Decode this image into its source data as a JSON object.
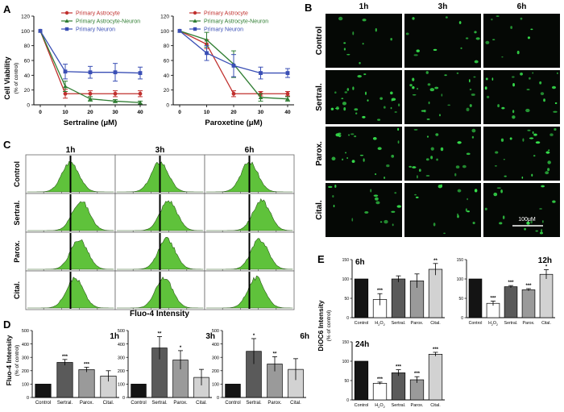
{
  "panel_letters": {
    "A": "A",
    "B": "B",
    "C": "C",
    "D": "D",
    "E": "E"
  },
  "colors": {
    "astrocyte": "#c0302e",
    "coculture": "#2f7d32",
    "neuron": "#3a4fb5",
    "micrograph_bg": "#050805",
    "cell_green": "#36e04c",
    "histogram_fill": "#5fc23b",
    "bar_control": "#141414",
    "bar_sertral": "#5a5a5a",
    "bar_parox": "#9a9a9a",
    "bar_cital": "#d2d2d2",
    "bar_h2o2": "#ffffff"
  },
  "panel_a": {
    "ylabel": "Cell Viability",
    "ylabel_sub": "(% of control)",
    "legend": [
      "Primary Astrocyte",
      "Primary Astrocyte-Neuron",
      "Primary Neuron"
    ]
  },
  "panel_b": {
    "time_labels": [
      "1h",
      "3h",
      "6h"
    ],
    "row_labels": [
      "Control",
      "Sertral.",
      "Parox.",
      "Cital."
    ],
    "scale_bar": "100μM"
  },
  "panel_c": {
    "time_labels": [
      "1h",
      "3h",
      "6h"
    ],
    "row_labels": [
      "Control",
      "Sertral.",
      "Parox.",
      "Cital."
    ],
    "xlabel": "Fluo-4 Intensity"
  },
  "panel_d": {
    "ylabel": "Fluo-4 Intensity",
    "ylabel_sub": "(% of control)"
  },
  "panel_e": {
    "ylabel": "DiOC6 Intensity",
    "ylabel_sub": "(% of control)"
  },
  "chart_data": [
    {
      "id": "A1",
      "type": "line",
      "xlabel": "Sertraline (μM)",
      "x": [
        0,
        10,
        20,
        30,
        40
      ],
      "xticks": [
        "0",
        "10",
        "20",
        "30",
        "40"
      ],
      "ylim": [
        0,
        120
      ],
      "yticks": [
        0,
        20,
        40,
        60,
        80,
        100,
        120
      ],
      "series": [
        {
          "name": "Primary Astrocyte",
          "values": [
            100,
            15,
            15,
            15,
            15
          ],
          "err": [
            0,
            6,
            4,
            4,
            4
          ]
        },
        {
          "name": "Primary Astrocyte-Neuron",
          "values": [
            100,
            25,
            8,
            5,
            3
          ],
          "err": [
            0,
            7,
            3,
            2,
            2
          ]
        },
        {
          "name": "Primary Neuron",
          "values": [
            100,
            45,
            44,
            44,
            43
          ],
          "err": [
            0,
            10,
            8,
            12,
            8
          ]
        }
      ]
    },
    {
      "id": "A2",
      "type": "line",
      "xlabel": "Paroxetine (μM)",
      "x": [
        0,
        10,
        20,
        30,
        40
      ],
      "xticks": [
        "0",
        "10",
        "20",
        "30",
        "40"
      ],
      "ylim": [
        0,
        120
      ],
      "yticks": [
        0,
        20,
        40,
        60,
        80,
        100,
        120
      ],
      "series": [
        {
          "name": "Primary Astrocyte",
          "values": [
            100,
            82,
            15,
            15,
            15
          ],
          "err": [
            0,
            6,
            4,
            3,
            3
          ]
        },
        {
          "name": "Primary Astrocyte-Neuron",
          "values": [
            100,
            88,
            55,
            10,
            8
          ],
          "err": [
            0,
            10,
            18,
            5,
            3
          ]
        },
        {
          "name": "Primary Neuron",
          "values": [
            100,
            70,
            53,
            43,
            43
          ],
          "err": [
            0,
            10,
            15,
            8,
            6
          ]
        }
      ]
    },
    {
      "id": "D1",
      "type": "bar",
      "title": "1h",
      "categories": [
        "Control",
        "Sertral.",
        "Parox.",
        "Cital."
      ],
      "values": [
        100,
        262,
        208,
        160
      ],
      "err": [
        0,
        22,
        18,
        40
      ],
      "sig": [
        "",
        "***",
        "***",
        ""
      ],
      "ylim": [
        0,
        500
      ],
      "yticks": [
        0,
        100,
        200,
        300,
        400,
        500
      ]
    },
    {
      "id": "D2",
      "type": "bar",
      "title": "3h",
      "categories": [
        "Control",
        "Sertral.",
        "Parox.",
        "Cital."
      ],
      "values": [
        100,
        370,
        280,
        150
      ],
      "err": [
        0,
        85,
        70,
        60
      ],
      "sig": [
        "",
        "**",
        "*",
        ""
      ],
      "ylim": [
        0,
        500
      ],
      "yticks": [
        0,
        100,
        200,
        300,
        400,
        500
      ]
    },
    {
      "id": "D3",
      "type": "bar",
      "title": "6h",
      "categories": [
        "Control",
        "Sertral.",
        "Parox.",
        "Cital."
      ],
      "values": [
        100,
        345,
        250,
        210
      ],
      "err": [
        0,
        95,
        55,
        80
      ],
      "sig": [
        "",
        "*",
        "**",
        ""
      ],
      "ylim": [
        0,
        500
      ],
      "yticks": [
        0,
        100,
        200,
        300,
        400,
        500
      ]
    },
    {
      "id": "E1",
      "type": "bar",
      "title": "6h",
      "categories": [
        "Control",
        "H2O2",
        "Sertral.",
        "Parox.",
        "Cital."
      ],
      "values": [
        100,
        47,
        100,
        95,
        125
      ],
      "err": [
        0,
        15,
        8,
        18,
        15
      ],
      "sig": [
        "",
        "***",
        "",
        "",
        "**"
      ],
      "ylim": [
        0,
        150
      ],
      "yticks": [
        0,
        50,
        100,
        150
      ]
    },
    {
      "id": "E2",
      "type": "bar",
      "title": "12h",
      "categories": [
        "Control",
        "H2O2",
        "Sertral.",
        "Parox.",
        "Cital."
      ],
      "values": [
        100,
        37,
        80,
        72,
        112
      ],
      "err": [
        0,
        6,
        3,
        3,
        12
      ],
      "sig": [
        "",
        "***",
        "***",
        "***",
        "*"
      ],
      "ylim": [
        0,
        150
      ],
      "yticks": [
        0,
        50,
        100,
        150
      ]
    },
    {
      "id": "E3",
      "type": "bar",
      "title": "24h",
      "categories": [
        "Control",
        "H2O2",
        "Sertral.",
        "Parox.",
        "Cital."
      ],
      "values": [
        100,
        43,
        70,
        52,
        118
      ],
      "err": [
        0,
        3,
        8,
        8,
        5
      ],
      "sig": [
        "",
        "***",
        "***",
        "***",
        "***"
      ],
      "ylim": [
        0,
        150
      ],
      "yticks": [
        0,
        50,
        100,
        150
      ]
    }
  ]
}
